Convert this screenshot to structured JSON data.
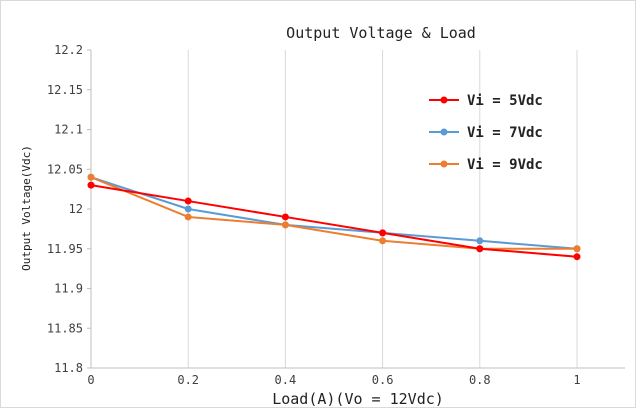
{
  "chart_data": {
    "type": "line",
    "title": "Output Voltage & Load",
    "xlabel": "Load(A)(Vo = 12Vdc)",
    "ylabel": "Output Voltage(Vdc)",
    "xlim": [
      0,
      1
    ],
    "ylim": [
      11.8,
      12.2
    ],
    "x": [
      0,
      0.2,
      0.4,
      0.6,
      0.8,
      1
    ],
    "x_tick_labels": [
      "0",
      "0.2",
      "0.4",
      "0.6",
      "0.8",
      "1"
    ],
    "y_ticks": [
      11.8,
      11.85,
      11.9,
      11.95,
      12,
      12.05,
      12.1,
      12.15,
      12.2
    ],
    "y_tick_labels": [
      "11.8",
      "11.85",
      "11.9",
      "11.95",
      "12",
      "12.05",
      "12.1",
      "12.15",
      "12.2"
    ],
    "grid": "vertical",
    "legend_position": "right",
    "series": [
      {
        "name": "Vi = 5Vdc",
        "color": "#ff0000",
        "values": [
          12.03,
          12.01,
          11.99,
          11.97,
          11.95,
          11.94
        ]
      },
      {
        "name": "Vi = 7Vdc",
        "color": "#5b9bd5",
        "values": [
          12.04,
          12.0,
          11.98,
          11.97,
          11.96,
          11.95
        ]
      },
      {
        "name": "Vi = 9Vdc",
        "color": "#ed7d31",
        "values": [
          12.04,
          11.99,
          11.98,
          11.96,
          11.95,
          11.95
        ]
      }
    ]
  }
}
